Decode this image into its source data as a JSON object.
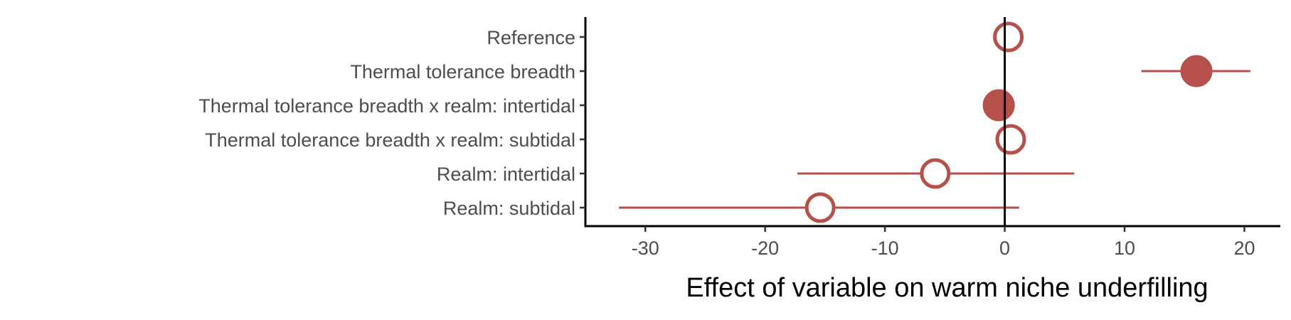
{
  "chart_data": {
    "type": "scatter",
    "subtype": "forest-plot",
    "title": "",
    "xlabel": "Effect of variable on warm niche underfilling",
    "ylabel": "",
    "xlim": [
      -35,
      23
    ],
    "xticks": [
      "-30",
      "-20",
      "-10",
      "0",
      "10",
      "20"
    ],
    "xtick_values": [
      -30,
      -20,
      -10,
      0,
      10,
      20
    ],
    "reference_line_x": 0,
    "grid": false,
    "legend": "none",
    "color": "#b5514a",
    "rows": [
      {
        "label": "Reference",
        "estimate": 0.3,
        "lower": 0.3,
        "upper": 0.3,
        "filled": false
      },
      {
        "label": "Thermal tolerance breadth",
        "estimate": 16.0,
        "lower": 11.4,
        "upper": 20.5,
        "filled": true
      },
      {
        "label": "Thermal tolerance breadth x realm: intertidal",
        "estimate": -0.5,
        "lower": -0.5,
        "upper": -0.5,
        "filled": true
      },
      {
        "label": "Thermal tolerance breadth x realm: subtidal",
        "estimate": 0.5,
        "lower": 0.5,
        "upper": 0.5,
        "filled": false
      },
      {
        "label": "Realm: intertidal",
        "estimate": -5.8,
        "lower": -17.3,
        "upper": 5.8,
        "filled": false
      },
      {
        "label": "Realm: subtidal",
        "estimate": -15.4,
        "lower": -32.2,
        "upper": 1.2,
        "filled": false
      }
    ]
  }
}
